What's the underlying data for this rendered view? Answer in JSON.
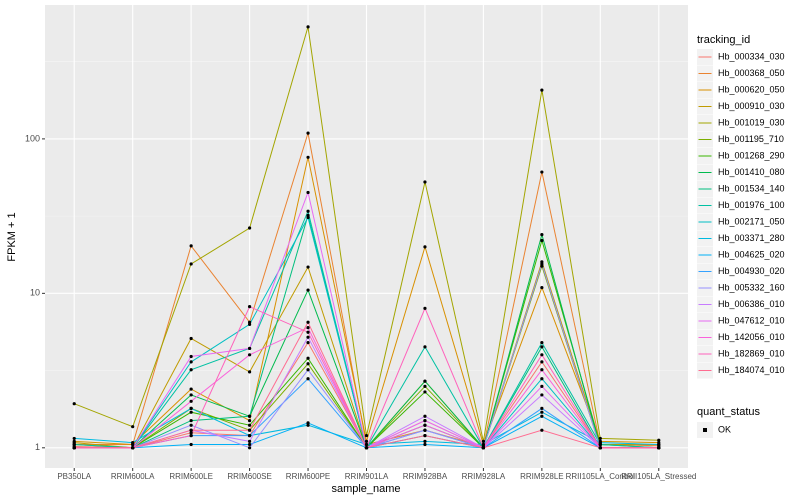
{
  "chart_data": {
    "type": "line",
    "x_label": "sample_name",
    "y_label": "FPKM + 1",
    "categories": [
      "PB350LA",
      "RRIM600LA",
      "RRIM600LE",
      "RRIM600SE",
      "RRIM600PE",
      "RRIM901LA",
      "RRIM928BA",
      "RRIM928LA",
      "RRIM928LE",
      "RRII105LA_Control",
      "RRII105LA_Stressed"
    ],
    "log_scale": true,
    "grid": true,
    "ylim": [
      0.74,
      736
    ],
    "yticks": [
      1,
      10,
      100
    ],
    "legend_title": "tracking_id",
    "shape_legend_title": "quant_status",
    "shape_legend_entries": [
      "OK"
    ],
    "point_color": "#000000",
    "series": [
      {
        "name": "Hb_000334_030",
        "color": "#F8766D",
        "values": [
          1.02,
          1.0,
          1.25,
          1.2,
          4.8,
          1.0,
          1.5,
          1.0,
          3.6,
          1.0,
          1.0
        ]
      },
      {
        "name": "Hb_000368_050",
        "color": "#EA8331",
        "values": [
          1.05,
          1.05,
          20.3,
          6.5,
          109,
          1.05,
          1.3,
          1.02,
          61,
          1.05,
          1.03
        ]
      },
      {
        "name": "Hb_000620_050",
        "color": "#D89000",
        "values": [
          1.1,
          1.05,
          2.4,
          1.5,
          76,
          1.1,
          20,
          1.05,
          10.9,
          1.1,
          1.08
        ]
      },
      {
        "name": "Hb_000910_030",
        "color": "#C09B00",
        "values": [
          1.08,
          1.0,
          5.1,
          3.1,
          14.8,
          1.0,
          2.7,
          1.0,
          16,
          1.05,
          1.05
        ]
      },
      {
        "name": "Hb_001019_030",
        "color": "#A3A500",
        "values": [
          1.93,
          1.37,
          15.5,
          26.5,
          531,
          1.2,
          52.6,
          1.1,
          207,
          1.15,
          1.12
        ]
      },
      {
        "name": "Hb_001195_710",
        "color": "#7CAE00",
        "values": [
          1.05,
          1.0,
          1.8,
          1.3,
          3.5,
          1.0,
          2.5,
          1.0,
          15,
          1.0,
          1.0
        ]
      },
      {
        "name": "Hb_001268_290",
        "color": "#39B600",
        "values": [
          1.0,
          1.0,
          1.7,
          1.4,
          3.8,
          1.0,
          2.3,
          1.0,
          22,
          1.05,
          1.0
        ]
      },
      {
        "name": "Hb_001410_080",
        "color": "#00BB4E",
        "values": [
          1.0,
          1.0,
          2.2,
          1.6,
          10.5,
          1.0,
          2.7,
          1.0,
          24,
          1.0,
          1.0
        ]
      },
      {
        "name": "Hb_001534_140",
        "color": "#00BF7D",
        "values": [
          1.0,
          1.0,
          1.5,
          1.6,
          32,
          1.0,
          1.4,
          1.0,
          4.5,
          1.0,
          1.0
        ]
      },
      {
        "name": "Hb_001976_100",
        "color": "#00C1A3",
        "values": [
          1.05,
          1.0,
          3.2,
          4.4,
          34,
          1.0,
          4.5,
          1.0,
          4.8,
          1.05,
          1.0
        ]
      },
      {
        "name": "Hb_002171_050",
        "color": "#00BFC4",
        "values": [
          1.0,
          1.0,
          3.6,
          6.3,
          31,
          1.0,
          1.2,
          1.0,
          2.8,
          1.0,
          1.0
        ]
      },
      {
        "name": "Hb_003371_280",
        "color": "#00BAE0",
        "values": [
          1.15,
          1.08,
          1.8,
          1.2,
          1.4,
          1.05,
          1.1,
          1.05,
          1.7,
          1.08,
          1.05
        ]
      },
      {
        "name": "Hb_004625_020",
        "color": "#00B0F6",
        "values": [
          1.0,
          1.0,
          1.05,
          1.05,
          1.45,
          1.0,
          1.05,
          1.0,
          1.6,
          1.0,
          1.0
        ]
      },
      {
        "name": "Hb_004930_020",
        "color": "#35A2FF",
        "values": [
          1.0,
          1.0,
          1.2,
          1.2,
          2.8,
          1.0,
          1.3,
          1.0,
          1.8,
          1.0,
          1.0
        ]
      },
      {
        "name": "Hb_005332_160",
        "color": "#9590FF",
        "values": [
          1.0,
          1.0,
          1.4,
          1.0,
          3.2,
          1.0,
          1.3,
          1.0,
          15.5,
          1.0,
          1.0
        ]
      },
      {
        "name": "Hb_006386_010",
        "color": "#C77CFF",
        "values": [
          1.0,
          1.0,
          1.3,
          1.1,
          5.2,
          1.0,
          1.6,
          1.0,
          2.2,
          1.0,
          1.0
        ]
      },
      {
        "name": "Hb_047612_010",
        "color": "#E76BF3",
        "values": [
          1.0,
          1.0,
          3.9,
          4.4,
          45,
          1.0,
          1.5,
          1.0,
          2.5,
          1.0,
          1.0
        ]
      },
      {
        "name": "Hb_142056_010",
        "color": "#FA62DB",
        "values": [
          1.0,
          1.0,
          2.0,
          4.0,
          6.0,
          1.0,
          1.4,
          1.0,
          3.2,
          1.0,
          1.0
        ]
      },
      {
        "name": "Hb_182869_010",
        "color": "#FF62BC",
        "values": [
          1.0,
          1.0,
          1.2,
          8.2,
          5.6,
          1.0,
          8.0,
          1.0,
          4.0,
          1.0,
          1.0
        ]
      },
      {
        "name": "Hb_184074_010",
        "color": "#FF6C91",
        "values": [
          1.0,
          1.0,
          1.3,
          1.3,
          6.5,
          1.0,
          1.2,
          1.0,
          1.3,
          1.0,
          1.0
        ]
      }
    ]
  }
}
